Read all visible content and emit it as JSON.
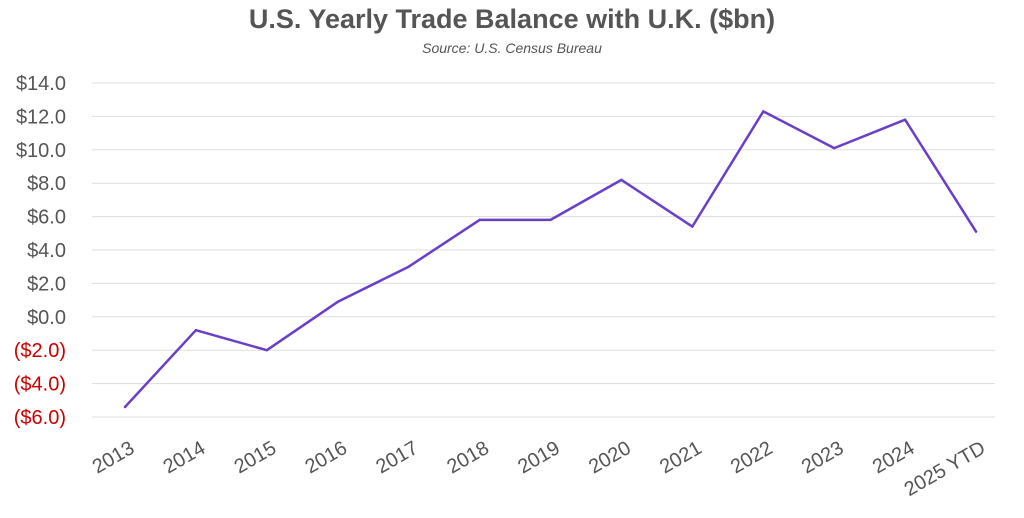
{
  "chart_data": {
    "type": "line",
    "title": "U.S. Yearly Trade Balance with U.K. ($bn)",
    "subtitle": "Source: U.S. Census Bureau",
    "xlabel": "",
    "ylabel": "",
    "categories": [
      "2013",
      "2014",
      "2015",
      "2016",
      "2017",
      "2018",
      "2019",
      "2020",
      "2021",
      "2022",
      "2023",
      "2024",
      "2025 YTD"
    ],
    "series": [
      {
        "values": [
          -5.4,
          -0.8,
          -2.0,
          0.9,
          3.0,
          5.8,
          5.8,
          8.2,
          5.4,
          12.3,
          10.1,
          11.8,
          5.1
        ],
        "color": "#6a3fc8"
      }
    ],
    "ylim": [
      -6,
      14
    ],
    "yticks": [
      {
        "value": 14,
        "label": "$14.0"
      },
      {
        "value": 12,
        "label": "$12.0"
      },
      {
        "value": 10,
        "label": "$10.0"
      },
      {
        "value": 8,
        "label": "$8.0"
      },
      {
        "value": 6,
        "label": "$6.0"
      },
      {
        "value": 4,
        "label": "$4.0"
      },
      {
        "value": 2,
        "label": "$2.0"
      },
      {
        "value": 0,
        "label": "$0.0"
      },
      {
        "value": -2,
        "label": "($2.0)"
      },
      {
        "value": -4,
        "label": "($4.0)"
      },
      {
        "value": -6,
        "label": "($6.0)"
      }
    ],
    "grid": true,
    "colors": {
      "line": "#6a3fc8",
      "positive_tick": "#555555",
      "negative_tick": "#cc0000",
      "grid": "#dddddd"
    }
  }
}
